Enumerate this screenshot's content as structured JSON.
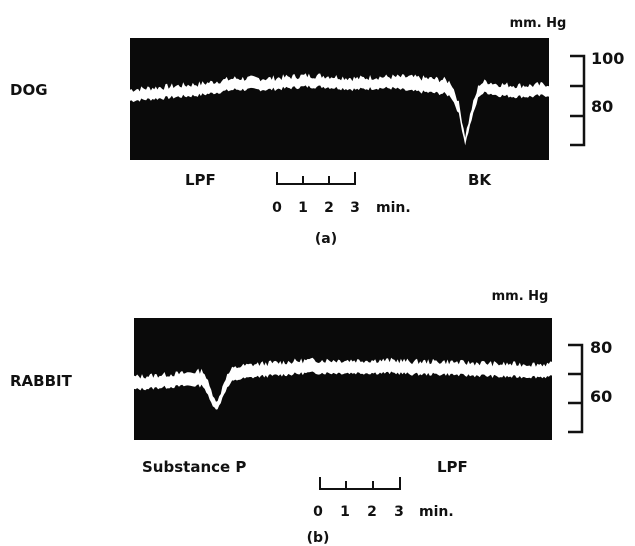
{
  "colors": {
    "trace_background": "#0a0a0a",
    "trace": "#ffffff",
    "ink": "#111111"
  },
  "chart_data": [
    {
      "type": "line",
      "panel_label": "(a)",
      "species_label": "DOG",
      "unit_label": "mm. Hg",
      "y_ticks": [
        100,
        80
      ],
      "ylim": [
        60,
        100
      ],
      "annotations": [
        {
          "text": "LPF",
          "time_min": 0.0
        },
        {
          "text": "BK",
          "time_min": 9.4
        }
      ],
      "time_scale": {
        "ticks": [
          "0",
          "1",
          "2",
          "3"
        ],
        "unit": "min."
      },
      "series": [
        {
          "time_min": [
            0,
            0.5,
            1,
            1.5,
            2,
            2.5,
            3,
            3.5,
            4,
            4.5,
            5,
            5.5,
            6,
            6.5,
            7,
            7.5,
            8,
            8.5,
            9,
            9.2,
            9.4,
            9.6,
            9.8,
            10,
            10.2,
            10.5,
            11,
            11.5,
            12
          ],
          "mean_mmHg": [
            86,
            86.5,
            87,
            87.5,
            88,
            89,
            90,
            90,
            90,
            90.5,
            91,
            91,
            90.5,
            90,
            90.5,
            90.5,
            90,
            89.5,
            89,
            88,
            82,
            70,
            80,
            88,
            89,
            88,
            87.5,
            87.5,
            88
          ],
          "pulse_mmHg": [
            4,
            4,
            4,
            4,
            4,
            4,
            4,
            4,
            4,
            4,
            4,
            4,
            4,
            4,
            4,
            4,
            5,
            5,
            5,
            5,
            4,
            3,
            4,
            4,
            4,
            4,
            4,
            4,
            4
          ]
        }
      ]
    },
    {
      "type": "line",
      "panel_label": "(b)",
      "species_label": "RABBIT",
      "unit_label": "mm. Hg",
      "y_ticks": [
        80,
        60
      ],
      "ylim": [
        50,
        80
      ],
      "annotations": [
        {
          "text": "Substance P",
          "time_min": 2.0
        },
        {
          "text": "LPF",
          "time_min": 7.8
        }
      ],
      "time_scale": {
        "ticks": [
          "0",
          "1",
          "2",
          "3"
        ],
        "unit": "min."
      },
      "series": [
        {
          "time_min": [
            0,
            0.5,
            1,
            1.5,
            2,
            2.2,
            2.4,
            2.6,
            2.8,
            3,
            3.5,
            4,
            4.5,
            5,
            5.5,
            6,
            6.5,
            7,
            7.5,
            8,
            8.5,
            9,
            9.5,
            10,
            10.5,
            11,
            11.5,
            12
          ],
          "mean_mmHg": [
            65,
            65.5,
            66,
            66.5,
            67,
            60,
            56,
            64,
            68,
            69,
            70,
            70.5,
            71,
            71.5,
            71.5,
            71.5,
            71.5,
            71.5,
            71.5,
            71,
            71,
            71,
            70.5,
            70.5,
            70,
            70,
            70,
            70
          ],
          "pulse_mmHg": [
            5,
            5,
            5,
            5,
            6,
            5,
            3,
            5,
            5,
            5,
            5,
            5,
            5,
            5,
            5,
            5,
            5,
            5,
            5,
            5,
            5,
            5,
            5,
            5,
            5,
            5,
            5,
            5
          ]
        }
      ]
    }
  ]
}
